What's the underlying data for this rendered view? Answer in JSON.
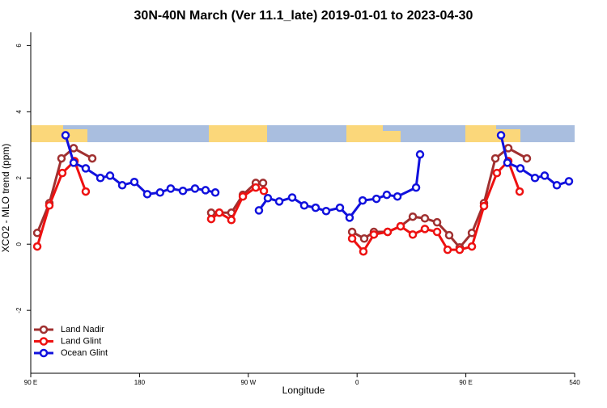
{
  "chart_data": {
    "type": "line",
    "title": "30N-40N March (Ver 11.1_late)   2019-01-01 to 2023-04-30",
    "x_label": "Longitude",
    "y_label": "XCO2 - MLO trend (ppm)",
    "xlim": [
      90,
      540
    ],
    "ylim": [
      -3.9,
      6.4
    ],
    "xticks": [
      {
        "value": 90,
        "label": "90 E"
      },
      180,
      {
        "value": 270,
        "label": "90 W"
      },
      {
        "value": 360,
        "label": "0"
      },
      {
        "value": 450,
        "label": "90 E"
      },
      540
    ],
    "yticks": [
      -2,
      0,
      2,
      4,
      6
    ],
    "legend": "bottom-left",
    "series": [
      {
        "name": "Land Nadir",
        "color": "#a03030",
        "x": [
          95.4,
          105.4,
          115.4,
          125.5,
          140.9,
          null,
          239.3,
          246,
          256,
          265.5,
          276.2,
          282.2,
          null,
          355.9,
          365.9,
          373.9,
          385.3,
          396,
          406.1,
          416.1,
          426.2,
          436.2,
          444.9,
          455,
          465,
          474.4,
          485.1,
          500.5
        ],
        "values": [
          0.34,
          1.24,
          2.59,
          2.9,
          2.59,
          null,
          0.95,
          0.95,
          0.95,
          1.49,
          1.85,
          1.85,
          null,
          0.37,
          0.17,
          0.37,
          0.37,
          0.54,
          0.83,
          0.78,
          0.66,
          0.27,
          -0.1,
          0.34,
          1.24,
          2.59,
          2.9,
          2.59
        ]
      },
      {
        "name": "Land Glint",
        "color": "#ee1111",
        "x": [
          95.4,
          105.4,
          116.1,
          126.2,
          135.5,
          null,
          239.3,
          246,
          256,
          265.5,
          276.2,
          282.9,
          null,
          355.9,
          365.2,
          373.9,
          385.3,
          396,
          406.1,
          416.1,
          426.2,
          434.9,
          444.9,
          455,
          465,
          475.7,
          485.1,
          494.5
        ],
        "values": [
          -0.07,
          1.17,
          2.15,
          2.51,
          1.59,
          null,
          0.76,
          0.95,
          0.73,
          1.44,
          1.71,
          1.61,
          null,
          0.17,
          -0.22,
          0.29,
          0.37,
          0.54,
          0.29,
          0.46,
          0.37,
          -0.17,
          -0.17,
          -0.07,
          1.15,
          2.15,
          2.51,
          1.59
        ]
      },
      {
        "name": "Ocean Glint",
        "color": "#1111dd",
        "x": [
          118.8,
          125.5,
          135.5,
          147.6,
          155.6,
          165.7,
          175.7,
          186.4,
          197,
          205.8,
          215.9,
          225.9,
          234.6,
          242.7,
          null,
          278.8,
          286.2,
          295.6,
          306.3,
          316.3,
          325.7,
          334.4,
          345.8,
          353.8,
          364.6,
          376,
          384.6,
          393.4,
          408.8,
          412.1,
          null,
          479.1,
          484.4,
          495.1,
          507.2,
          515.2,
          525.3,
          535.3
        ],
        "values": [
          3.29,
          2.46,
          2.29,
          2.0,
          2.07,
          1.78,
          1.88,
          1.51,
          1.56,
          1.68,
          1.61,
          1.68,
          1.63,
          1.56,
          null,
          1.02,
          1.39,
          1.29,
          1.41,
          1.17,
          1.1,
          1.0,
          1.1,
          0.8,
          1.32,
          1.37,
          1.49,
          1.44,
          1.71,
          2.71,
          null,
          3.29,
          2.46,
          2.29,
          2.0,
          2.07,
          1.78,
          1.9
        ]
      }
    ]
  }
}
